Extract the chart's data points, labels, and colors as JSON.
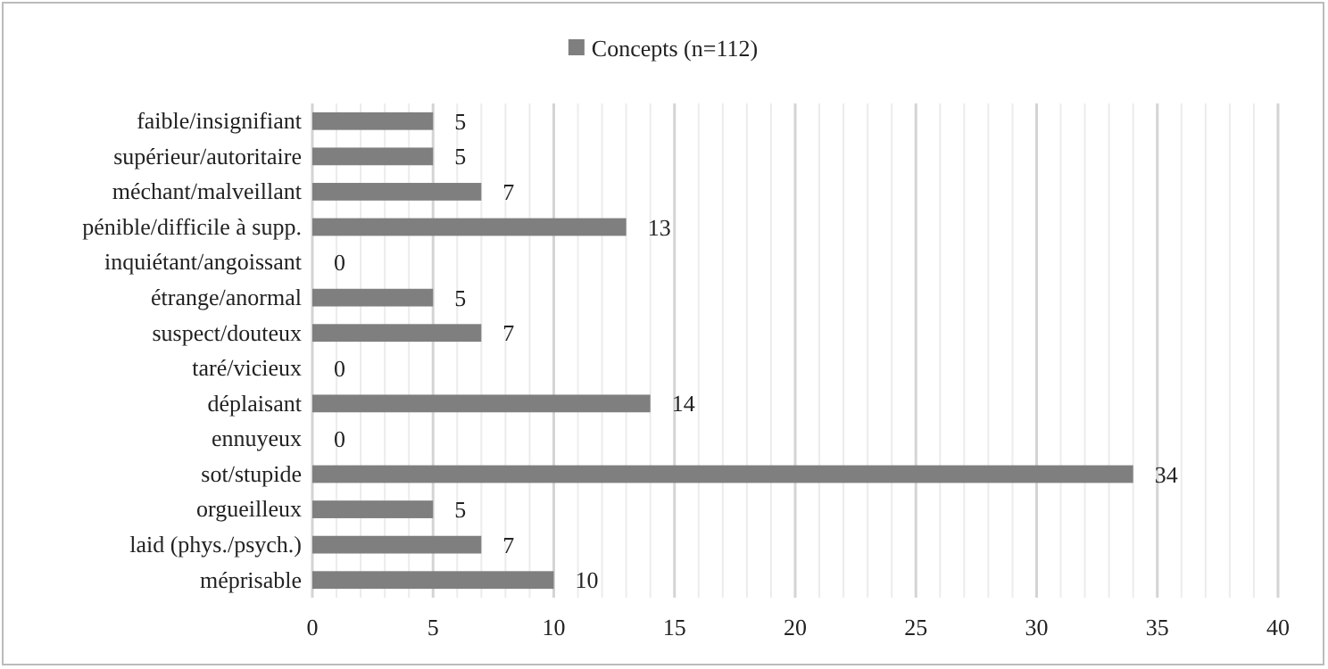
{
  "chart_data": {
    "type": "bar",
    "orientation": "horizontal",
    "categories": [
      "faible/insignifiant",
      "supérieur/autoritaire",
      "méchant/malveillant",
      "pénible/difficile à supp.",
      "inquiétant/angoissant",
      "étrange/anormal",
      "suspect/douteux",
      "taré/vicieux",
      "déplaisant",
      "ennuyeux",
      "sot/stupide",
      "orgueilleux",
      "laid (phys./psych.)",
      "méprisable"
    ],
    "series": [
      {
        "name": "Concepts (n=112)",
        "color": "#7f7f7f",
        "values": [
          5,
          5,
          7,
          13,
          0,
          5,
          7,
          0,
          14,
          0,
          34,
          5,
          7,
          10
        ]
      }
    ],
    "xlim": [
      0,
      40
    ],
    "xticks": [
      0,
      {
        "value": 1,
        "label": null
      },
      {
        "value": 2,
        "label": null
      },
      {
        "value": 3,
        "label": null
      },
      {
        "value": 4,
        "label": null
      },
      5,
      {
        "value": 6,
        "label": null
      },
      {
        "value": 7,
        "label": null
      },
      {
        "value": 8,
        "label": null
      },
      {
        "value": 9,
        "label": null
      },
      10,
      {
        "value": 11,
        "label": null
      },
      {
        "value": 12,
        "label": null
      },
      {
        "value": 13,
        "label": null
      },
      {
        "value": 14,
        "label": null
      },
      15,
      {
        "value": 16,
        "label": null
      },
      {
        "value": 17,
        "label": null
      },
      {
        "value": 18,
        "label": null
      },
      {
        "value": 19,
        "label": null
      },
      20,
      {
        "value": 21,
        "label": null
      },
      {
        "value": 22,
        "label": null
      },
      {
        "value": 23,
        "label": null
      },
      {
        "value": 24,
        "label": null
      },
      25,
      {
        "value": 26,
        "label": null
      },
      {
        "value": 27,
        "label": null
      },
      {
        "value": 28,
        "label": null
      },
      {
        "value": 29,
        "label": null
      },
      30,
      {
        "value": 31,
        "label": null
      },
      {
        "value": 32,
        "label": null
      },
      {
        "value": 33,
        "label": null
      },
      {
        "value": 34,
        "label": null
      },
      35,
      {
        "value": 36,
        "label": null
      },
      {
        "value": 37,
        "label": null
      },
      {
        "value": 38,
        "label": null
      },
      {
        "value": 39,
        "label": null
      },
      40
    ],
    "grid": "x",
    "legend": "top",
    "data_labels": true
  }
}
